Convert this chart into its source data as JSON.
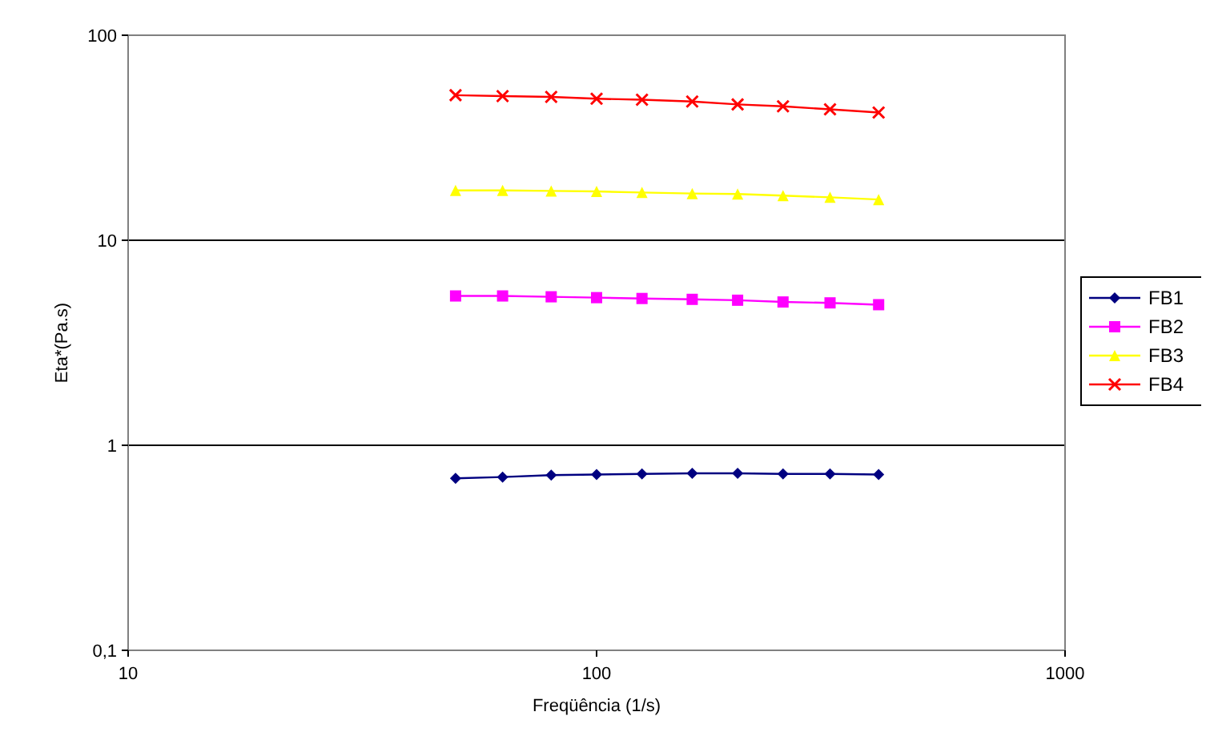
{
  "chart_data": {
    "type": "line",
    "xlabel": "Freqüência (1/s)",
    "ylabel": "Eta*(Pa.s)",
    "log": "xy",
    "xlim": [
      10,
      1000
    ],
    "xticks": [
      10,
      100,
      1000
    ],
    "ylim": [
      0.1,
      100
    ],
    "yticks": [
      {
        "value": 0.1,
        "label": "0,1"
      },
      1,
      10,
      100
    ],
    "grid": "y",
    "legend": "right",
    "x": [
      50,
      63,
      80,
      100,
      125,
      160,
      200,
      250,
      315,
      400
    ],
    "series": [
      {
        "name": "FB1",
        "color": "#000080",
        "marker": "diamond",
        "values": [
          0.69,
          0.7,
          0.715,
          0.72,
          0.725,
          0.73,
          0.73,
          0.725,
          0.725,
          0.72
        ]
      },
      {
        "name": "FB2",
        "color": "#ff00ff",
        "marker": "square",
        "values": [
          5.35,
          5.35,
          5.3,
          5.25,
          5.2,
          5.15,
          5.1,
          5.0,
          4.95,
          4.85
        ]
      },
      {
        "name": "FB3",
        "color": "#ffff00",
        "marker": "triangle",
        "values": [
          17.5,
          17.5,
          17.4,
          17.3,
          17.1,
          16.9,
          16.8,
          16.5,
          16.2,
          15.8
        ]
      },
      {
        "name": "FB4",
        "color": "#ff0000",
        "marker": "cross",
        "values": [
          51,
          50.5,
          50,
          49,
          48.5,
          47.5,
          46,
          45,
          43.5,
          42
        ]
      }
    ]
  }
}
